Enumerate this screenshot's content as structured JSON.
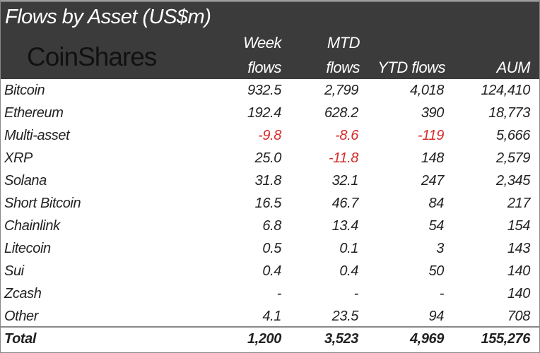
{
  "title": "Flows by Asset (US$m)",
  "logo_text": "CoinShares",
  "columns": [
    {
      "line1": "Week",
      "line2": "flows"
    },
    {
      "line1": "MTD",
      "line2": "flows"
    },
    {
      "line1": "",
      "line2": "YTD flows"
    },
    {
      "line1": "",
      "line2": "AUM"
    }
  ],
  "negative_color": "#d62b2b",
  "rows": [
    {
      "asset": "Bitcoin",
      "values": [
        "932.5",
        "2,799",
        "4,018",
        "124,410"
      ]
    },
    {
      "asset": "Ethereum",
      "values": [
        "192.4",
        "628.2",
        "390",
        "18,773"
      ]
    },
    {
      "asset": "Multi-asset",
      "values": [
        "-9.8",
        "-8.6",
        "-119",
        "5,666"
      ]
    },
    {
      "asset": "XRP",
      "values": [
        "25.0",
        "-11.8",
        "148",
        "2,579"
      ]
    },
    {
      "asset": "Solana",
      "values": [
        "31.8",
        "32.1",
        "247",
        "2,345"
      ]
    },
    {
      "asset": "Short Bitcoin",
      "values": [
        "16.5",
        "46.7",
        "84",
        "217"
      ]
    },
    {
      "asset": "Chainlink",
      "values": [
        "6.8",
        "13.4",
        "54",
        "154"
      ]
    },
    {
      "asset": "Litecoin",
      "values": [
        "0.5",
        "0.1",
        "3",
        "143"
      ]
    },
    {
      "asset": "Sui",
      "values": [
        "0.4",
        "0.4",
        "50",
        "140"
      ]
    },
    {
      "asset": "Zcash",
      "values": [
        "-",
        "-",
        "-",
        "140"
      ]
    },
    {
      "asset": "Other",
      "values": [
        "4.1",
        "23.5",
        "94",
        "708"
      ]
    }
  ],
  "total": {
    "asset": "Total",
    "values": [
      "1,200",
      "3,523",
      "4,969",
      "155,276"
    ]
  }
}
